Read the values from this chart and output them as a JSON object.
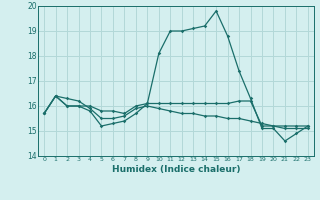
{
  "xlabel": "Humidex (Indice chaleur)",
  "background_color": "#d4efef",
  "grid_color": "#b2d8d8",
  "line_color": "#1a6e6a",
  "xlim": [
    -0.5,
    23.5
  ],
  "ylim": [
    14,
    20
  ],
  "yticks": [
    14,
    15,
    16,
    17,
    18,
    19,
    20
  ],
  "xticks": [
    0,
    1,
    2,
    3,
    4,
    5,
    6,
    7,
    8,
    9,
    10,
    11,
    12,
    13,
    14,
    15,
    16,
    17,
    18,
    19,
    20,
    21,
    22,
    23
  ],
  "series": [
    [
      15.7,
      16.4,
      16.0,
      16.0,
      15.8,
      15.2,
      15.3,
      15.4,
      15.7,
      16.1,
      18.1,
      19.0,
      19.0,
      19.1,
      19.2,
      19.8,
      18.8,
      17.4,
      16.3,
      15.1,
      15.1,
      14.6,
      14.9,
      15.2
    ],
    [
      15.7,
      16.4,
      16.0,
      16.0,
      16.0,
      15.8,
      15.8,
      15.7,
      16.0,
      16.1,
      16.1,
      16.1,
      16.1,
      16.1,
      16.1,
      16.1,
      16.1,
      16.2,
      16.2,
      15.2,
      15.2,
      15.2,
      15.2,
      15.2
    ],
    [
      15.7,
      16.4,
      16.3,
      16.2,
      15.9,
      15.5,
      15.5,
      15.6,
      15.9,
      16.0,
      15.9,
      15.8,
      15.7,
      15.7,
      15.6,
      15.6,
      15.5,
      15.5,
      15.4,
      15.3,
      15.2,
      15.1,
      15.1,
      15.1
    ]
  ]
}
